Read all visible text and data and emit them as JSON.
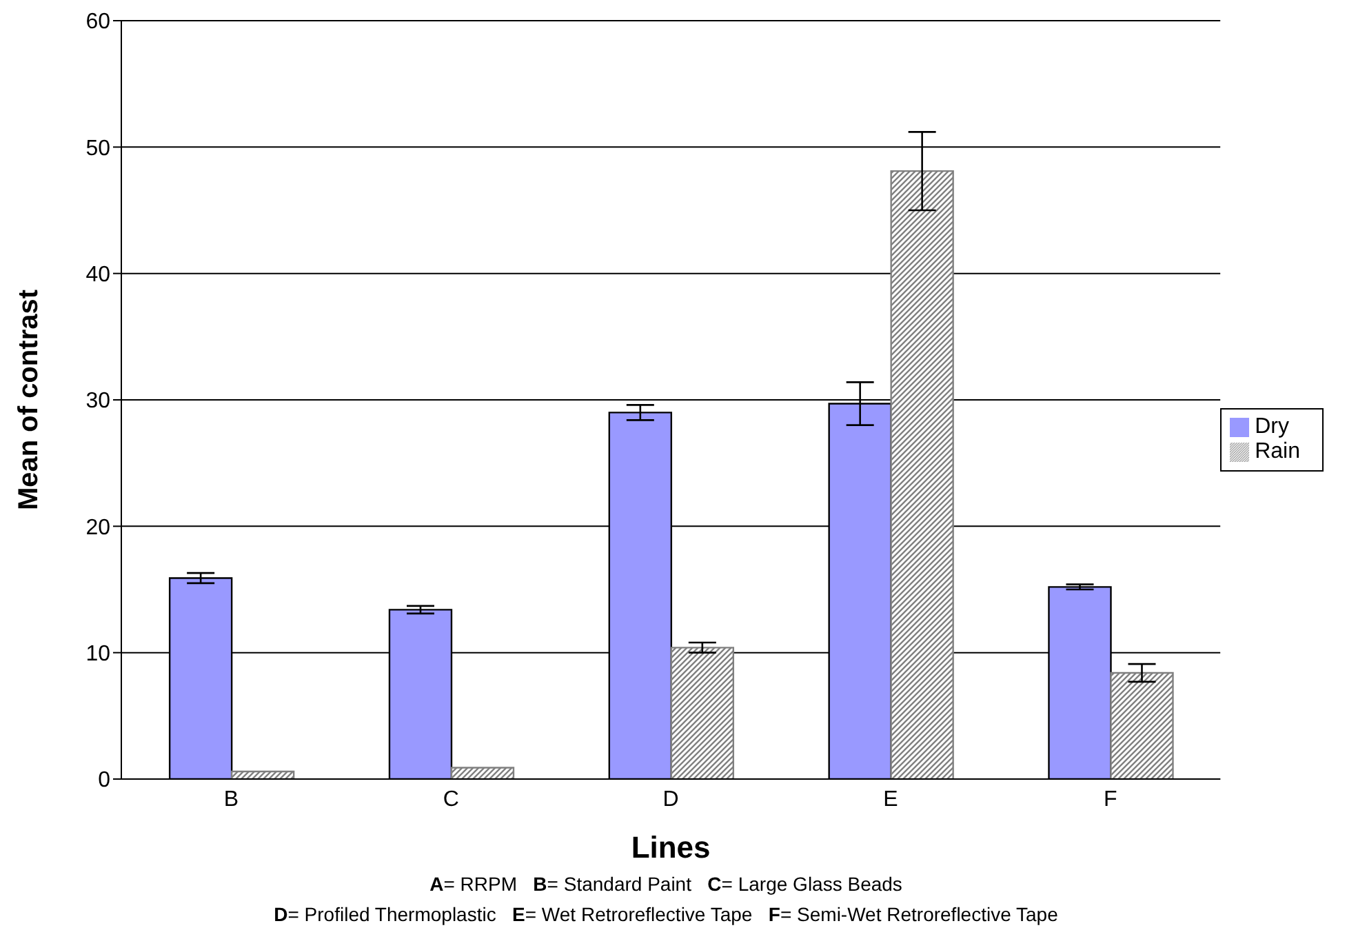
{
  "chart_data": {
    "type": "bar",
    "xlabel": "Lines",
    "ylabel": "Mean of contrast",
    "categories": [
      "B",
      "C",
      "D",
      "E",
      "F"
    ],
    "series": [
      {
        "name": "Dry",
        "color": "#9999ff",
        "values": [
          15.9,
          13.4,
          29.0,
          29.7,
          15.2
        ],
        "errors": [
          0.4,
          0.3,
          0.6,
          1.7,
          0.2
        ]
      },
      {
        "name": "Rain",
        "color": "#808080",
        "values": [
          0.6,
          0.9,
          10.4,
          48.1,
          8.4
        ],
        "errors": [
          null,
          null,
          0.4,
          3.1,
          0.7
        ]
      }
    ],
    "ylim": [
      0,
      60
    ],
    "yticks": [
      0,
      10,
      20,
      30,
      40,
      50,
      60
    ],
    "grid": "y",
    "legend": "right",
    "annotations": [
      "A= RRPM   B= Standard Paint   C= Large Glass Beads",
      "D= Profiled Thermoplastic   E= Wet Retroreflective Tape   F= Semi-Wet Retroreflective Tape"
    ]
  }
}
